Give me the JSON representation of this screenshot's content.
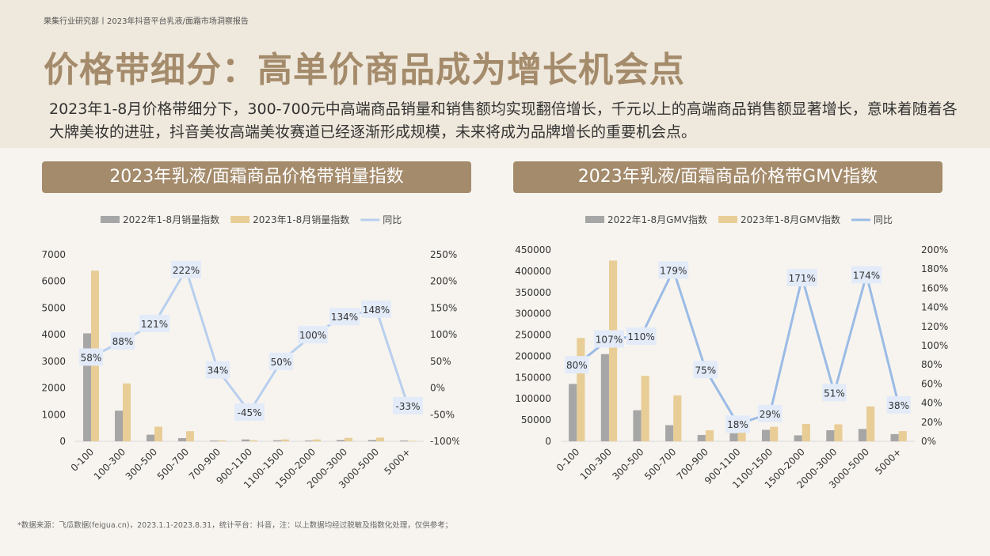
{
  "header": {
    "source_line": "果集行业研究部丨2023年抖音平台乳液/面霜市场洞察报告"
  },
  "title": "价格带细分：高单价商品成为增长机会点",
  "subtitle": "2023年1-8月价格带细分下，300-700元中高端商品销量和销售额均实现翻倍增长，千元以上的高端商品销售额显著增长，意味着随着各大牌美妆的进驻，抖音美妆高端美妆赛道已经逐渐形成规模，未来将成为品牌增长的重要机会点。",
  "colors": {
    "series2022": "#a6a6a6",
    "series2023": "#e8cd96",
    "growth_left": "#b8cfee",
    "growth_right": "#9bbbe6",
    "banner": "#a48b6b",
    "label_box": "#e3ebf8"
  },
  "footnote": "*数据来源：飞瓜数据(feigua.cn)，2023.1.1-2023.8.31，统计平台：抖音，注：以上数据均经过脱敏及指数化处理，仅供参考；",
  "chart_data": [
    {
      "type": "bar",
      "title": "2023年乳液/面霜商品价格带销量指数",
      "categories": [
        "0-100",
        "100-300",
        "300-500",
        "500-700",
        "700-900",
        "900-1100",
        "1100-1500",
        "1500-2000",
        "2000-3000",
        "3000-5000",
        "5000+"
      ],
      "series": [
        {
          "name": "2022年1-8月销量指数",
          "values": [
            4050,
            1150,
            250,
            120,
            30,
            70,
            40,
            30,
            50,
            50,
            30
          ]
        },
        {
          "name": "2023年1-8月销量指数",
          "values": [
            6400,
            2170,
            550,
            380,
            40,
            40,
            70,
            70,
            130,
            140,
            20
          ]
        },
        {
          "name": "同比",
          "axis": "right",
          "line": true,
          "values": [
            58,
            88,
            121,
            222,
            34,
            -45,
            50,
            100,
            134,
            148,
            -33
          ],
          "labels": [
            "58%",
            "88%",
            "121%",
            "222%",
            "34%",
            "-45%",
            "50%",
            "100%",
            "134%",
            "148%",
            "-33%"
          ]
        }
      ],
      "y_left": {
        "ticks": [
          "0",
          "1000",
          "2000",
          "3000",
          "4000",
          "5000",
          "6000",
          "7000"
        ],
        "lim": [
          0,
          7000
        ]
      },
      "y_right": {
        "ticks": [
          "-100%",
          "-50%",
          "0%",
          "50%",
          "100%",
          "150%",
          "200%",
          "250%"
        ],
        "lim": [
          -100,
          250
        ]
      },
      "legend": "top",
      "grid": false
    },
    {
      "type": "bar",
      "title": "2023年乳液/面霜商品价格带GMV指数",
      "categories": [
        "0-100",
        "100-300",
        "300-500",
        "500-700",
        "700-900",
        "900-1100",
        "1100-1500",
        "1500-2000",
        "2000-3000",
        "3000-5000",
        "5000+"
      ],
      "series": [
        {
          "name": "2022年1-8月GMV指数",
          "values": [
            135000,
            205000,
            73000,
            38000,
            15000,
            19000,
            27000,
            14000,
            26000,
            29000,
            17000
          ]
        },
        {
          "name": "2023年1-8月GMV指数",
          "values": [
            243000,
            425000,
            154000,
            108000,
            26000,
            22000,
            34000,
            41000,
            40000,
            82000,
            24000
          ]
        },
        {
          "name": "同比",
          "axis": "right",
          "line": true,
          "values": [
            80,
            107,
            110,
            179,
            75,
            18,
            29,
            171,
            51,
            174,
            38
          ],
          "labels": [
            "80%",
            "107%",
            "110%",
            "179%",
            "75%",
            "18%",
            "29%",
            "171%",
            "51%",
            "174%",
            "38%"
          ]
        }
      ],
      "y_left": {
        "ticks": [
          "0",
          "50000",
          "100000",
          "150000",
          "200000",
          "250000",
          "300000",
          "350000",
          "400000",
          "450000"
        ],
        "lim": [
          0,
          450000
        ]
      },
      "y_right": {
        "ticks": [
          "0%",
          "20%",
          "40%",
          "60%",
          "80%",
          "100%",
          "120%",
          "140%",
          "160%",
          "180%",
          "200%"
        ],
        "lim": [
          0,
          200
        ]
      },
      "legend": "top",
      "grid": false
    }
  ]
}
